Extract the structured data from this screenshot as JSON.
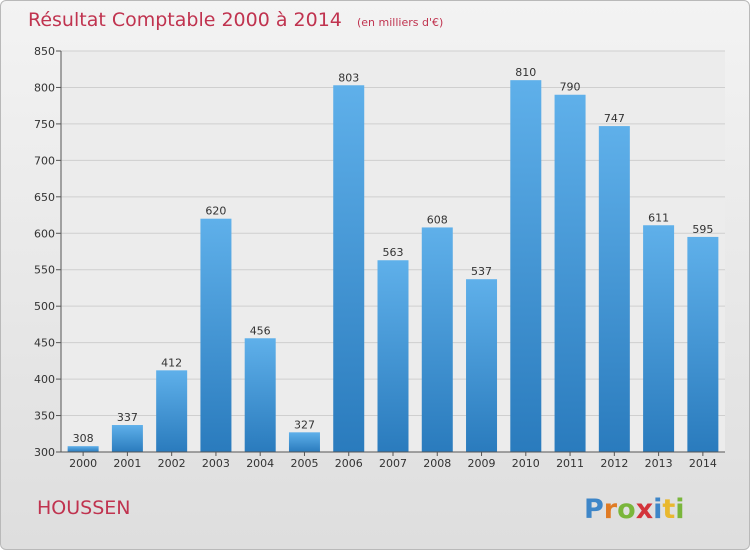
{
  "chart_data": {
    "type": "bar",
    "title": "Résultat Comptable 2000 à 2014",
    "subtitle": "(en milliers d'€)",
    "categories": [
      "2000",
      "2001",
      "2002",
      "2003",
      "2004",
      "2005",
      "2006",
      "2007",
      "2008",
      "2009",
      "2010",
      "2011",
      "2012",
      "2013",
      "2014"
    ],
    "values": [
      308,
      337,
      412,
      620,
      456,
      327,
      803,
      563,
      608,
      537,
      810,
      790,
      747,
      611,
      595
    ],
    "ylim": [
      300,
      850
    ],
    "yticks": [
      300,
      350,
      400,
      450,
      500,
      550,
      600,
      650,
      700,
      750,
      800,
      850
    ],
    "grid": true,
    "bar_color": "#3d95d6"
  },
  "footer": {
    "place": "HOUSSEN",
    "logo_text": "Proxiti",
    "logo_colors": [
      "#3e86c8",
      "#e07b24",
      "#7ab63b",
      "#d3343b",
      "#3e86c8",
      "#e9b82e",
      "#7ab63b"
    ]
  }
}
